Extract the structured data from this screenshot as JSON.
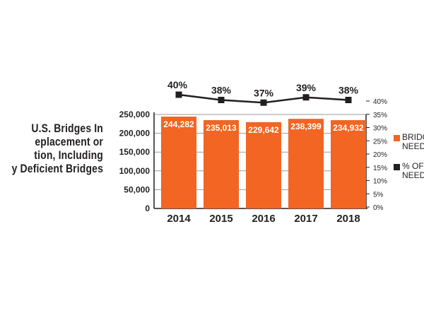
{
  "title_lines": [
    "U.S. Bridges In",
    "eplacement or",
    "tion, Including",
    "y Deficient Bridges"
  ],
  "legend": [
    {
      "lines": [
        "BRIDG",
        "NEED"
      ],
      "color": "#f26522",
      "marker": "square"
    },
    {
      "lines": [
        "% OF",
        "NEED"
      ],
      "color": "#231f20",
      "marker": "square"
    }
  ],
  "chart_data": {
    "type": "bar",
    "categories": [
      "2014",
      "2015",
      "2016",
      "2017",
      "2018"
    ],
    "series": [
      {
        "type": "bar",
        "axis": "left",
        "color": "#f26522",
        "values": [
          244282,
          235013,
          229642,
          238399,
          234932
        ],
        "labels": [
          "244,282",
          "235,013",
          "229,642",
          "238,399",
          "234,932"
        ]
      },
      {
        "type": "line",
        "axis": "right",
        "color": "#231f20",
        "marker": "square",
        "values": [
          40,
          38,
          37,
          39,
          38
        ],
        "labels": [
          "40%",
          "38%",
          "37%",
          "39%",
          "38%"
        ]
      }
    ],
    "y_left": {
      "ylim": [
        0,
        250000
      ],
      "ticks": [
        "0",
        "50,000",
        "100,000",
        "150,000",
        "200,000",
        "250,000"
      ]
    },
    "y_right": {
      "ylim": [
        0,
        40
      ],
      "ticks": [
        "0%",
        "5%",
        "10%",
        "15%",
        "20%",
        "25%",
        "30%",
        "35%",
        "40%"
      ]
    },
    "grid": true,
    "legend_placement": "right"
  }
}
